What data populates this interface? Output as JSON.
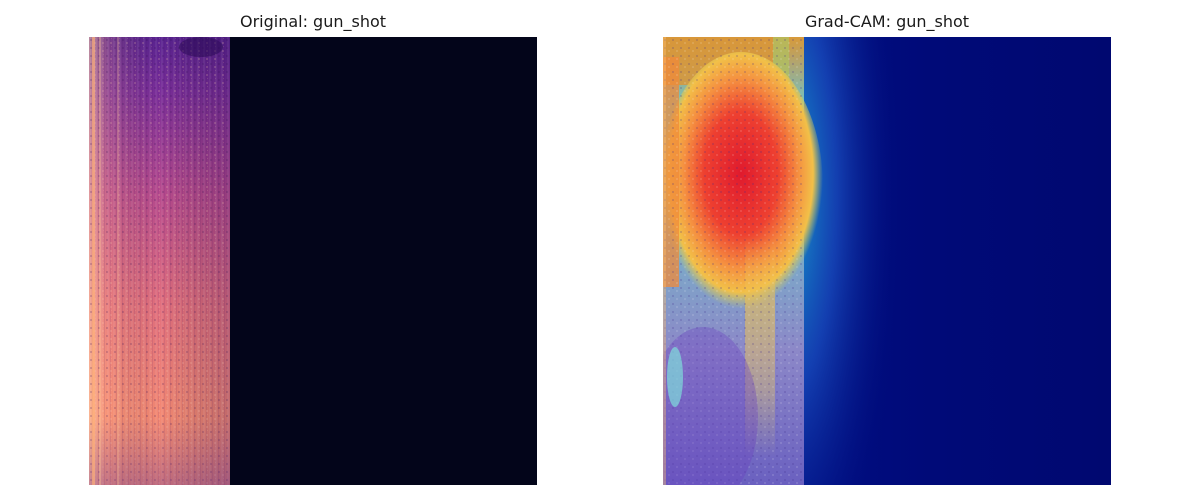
{
  "figure": {
    "panels": [
      {
        "title": "Original: gun_shot",
        "image": "spectrogram of gun_shot audio (magma colormap)"
      },
      {
        "title": "Grad-CAM: gun_shot",
        "image": "Grad-CAM heatmap (jet colormap) overlaid on spectrogram"
      }
    ],
    "colors": {
      "background_dark": "#03051a",
      "heatmap_base": "#000a78",
      "heat_red": "#e0202a",
      "heat_cyan": "#6ad8d0"
    }
  }
}
